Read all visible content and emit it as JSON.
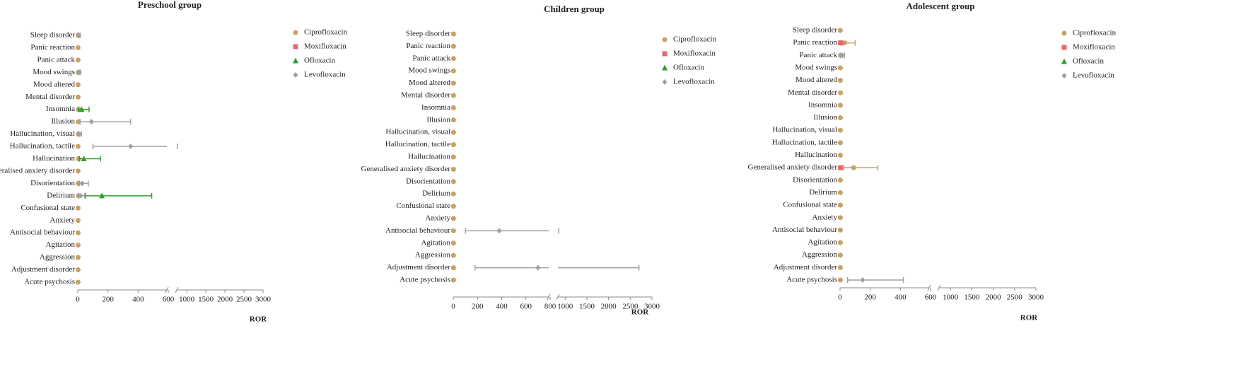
{
  "chart_data": [
    {
      "type": "forest",
      "title": "Preschool group",
      "xlabel": "ROR",
      "categories": [
        "Sleep disorder",
        "Panic reaction",
        "Panic attack",
        "Mood swings",
        "Mood altered",
        "Mental disorder",
        "Insomnia",
        "Illusion",
        "Hallucination, visual",
        "Hallucination, tactile",
        "Hallucination",
        "Generalised anxiety disorder",
        "Disorientation",
        "Delirium",
        "Confusional state",
        "Anxiety",
        "Antisocial behaviour",
        "Agitation",
        "Aggression",
        "Adjustment disorder",
        "Acute psychosis"
      ],
      "xlim": [
        0,
        3000
      ],
      "xbreak": [
        600,
        700
      ],
      "xticks": [
        0,
        200,
        400,
        600,
        1000,
        1500,
        2000,
        2500,
        3000
      ],
      "series": [
        {
          "name": "Ciprofloxacin",
          "color": "#c8a165",
          "marker": "circle",
          "values": [
            3,
            2,
            2,
            3,
            2,
            2,
            4,
            3,
            3,
            2,
            5,
            2,
            3,
            4,
            2,
            2,
            2,
            2,
            2,
            2,
            2
          ]
        },
        {
          "name": "Moxifloxacin",
          "color": "#e8676b",
          "marker": "square",
          "values": [
            null,
            null,
            null,
            null,
            null,
            null,
            null,
            null,
            null,
            null,
            null,
            null,
            null,
            null,
            null,
            null,
            null,
            null,
            null,
            null,
            null
          ]
        },
        {
          "name": "Ofloxacin",
          "color": "#2ca02c",
          "marker": "triangle",
          "values": [
            null,
            null,
            null,
            null,
            null,
            null,
            25,
            null,
            null,
            null,
            40,
            null,
            null,
            160,
            null,
            null,
            null,
            null,
            null,
            null,
            null
          ],
          "lower": [
            null,
            null,
            null,
            null,
            null,
            null,
            5,
            null,
            null,
            null,
            10,
            null,
            null,
            50,
            null,
            null,
            null,
            null,
            null,
            null,
            null
          ],
          "upper": [
            null,
            null,
            null,
            null,
            null,
            null,
            75,
            null,
            null,
            null,
            150,
            null,
            null,
            490,
            null,
            null,
            null,
            null,
            null,
            null,
            null
          ]
        },
        {
          "name": "Levofloxacin",
          "color": "#a0a0a0",
          "marker": "diamond",
          "values": [
            8,
            null,
            null,
            10,
            null,
            null,
            null,
            90,
            10,
            350,
            null,
            null,
            30,
            20,
            null,
            null,
            null,
            null,
            null,
            null,
            null
          ],
          "lower": [
            2,
            null,
            null,
            3,
            null,
            null,
            null,
            15,
            2,
            100,
            null,
            null,
            10,
            5,
            null,
            null,
            null,
            null,
            null,
            null,
            null
          ],
          "upper": [
            15,
            null,
            null,
            20,
            null,
            null,
            null,
            350,
            25,
            750,
            null,
            null,
            70,
            45,
            null,
            null,
            null,
            null,
            null,
            null,
            null
          ]
        }
      ]
    },
    {
      "type": "forest",
      "title": "Children group",
      "xlabel": "ROR",
      "categories": [
        "Sleep disorder",
        "Panic reaction",
        "Panic attack",
        "Mood swings",
        "Mood altered",
        "Mental disorder",
        "Insomnia",
        "Illusion",
        "Hallucination, visual",
        "Hallucination, tactile",
        "Hallucination",
        "Generalised anxiety disorder",
        "Disorientation",
        "Delirium",
        "Confusional state",
        "Anxiety",
        "Antisocial behaviour",
        "Agitation",
        "Aggression",
        "Adjustment disorder",
        "Acute psychosis"
      ],
      "xlim": [
        0,
        3000
      ],
      "xbreak": [
        800,
        800
      ],
      "xticks": [
        0,
        200,
        400,
        600,
        800,
        1000,
        1500,
        2000,
        2500,
        3000
      ],
      "series": [
        {
          "name": "Ciprofloxacin",
          "color": "#c8a165",
          "marker": "circle",
          "values": [
            2,
            2,
            2,
            2,
            2,
            2,
            2,
            2,
            2,
            2,
            2,
            2,
            2,
            2,
            2,
            2,
            2,
            2,
            2,
            2,
            2
          ]
        },
        {
          "name": "Moxifloxacin",
          "color": "#e8676b",
          "marker": "square",
          "values": [
            null,
            null,
            null,
            null,
            null,
            null,
            null,
            null,
            null,
            null,
            null,
            null,
            null,
            null,
            null,
            null,
            null,
            null,
            null,
            null,
            null
          ]
        },
        {
          "name": "Ofloxacin",
          "color": "#2ca02c",
          "marker": "triangle",
          "values": [
            null,
            null,
            null,
            null,
            null,
            null,
            null,
            null,
            null,
            null,
            null,
            null,
            null,
            null,
            null,
            null,
            null,
            null,
            null,
            null,
            null
          ]
        },
        {
          "name": "Levofloxacin",
          "color": "#a0a0a0",
          "marker": "diamond",
          "values": [
            null,
            null,
            null,
            null,
            null,
            null,
            null,
            null,
            null,
            null,
            null,
            null,
            null,
            null,
            null,
            null,
            380,
            null,
            null,
            700,
            null
          ],
          "lower": [
            null,
            null,
            null,
            null,
            null,
            null,
            null,
            null,
            null,
            null,
            null,
            null,
            null,
            null,
            null,
            null,
            100,
            null,
            null,
            180,
            null
          ],
          "upper": [
            null,
            null,
            null,
            null,
            null,
            null,
            null,
            null,
            null,
            null,
            null,
            null,
            null,
            null,
            null,
            null,
            850,
            null,
            null,
            2700,
            null
          ]
        }
      ]
    },
    {
      "type": "forest",
      "title": "Adolescent group",
      "xlabel": "ROR",
      "categories": [
        "Sleep disorder",
        "Panic reaction",
        "Panic attack",
        "Mood swings",
        "Mood altered",
        "Mental disorder",
        "Insomnia",
        "Illusion",
        "Hallucination, visual",
        "Hallucination, tactile",
        "Hallucination",
        "Generalised anxiety disorder",
        "Disorientation",
        "Delirium",
        "Confusional state",
        "Anxiety",
        "Antisocial behaviour",
        "Agitation",
        "Aggression",
        "Adjustment disorder",
        "Acute psychosis"
      ],
      "xlim": [
        0,
        3000
      ],
      "xbreak": [
        600,
        700
      ],
      "xticks": [
        0,
        200,
        400,
        600,
        1000,
        1500,
        2000,
        2500,
        3000
      ],
      "series": [
        {
          "name": "Ciprofloxacin",
          "color": "#c8a165",
          "marker": "circle",
          "values": [
            2,
            30,
            3,
            2,
            2,
            3,
            2,
            2,
            2,
            2,
            2,
            90,
            2,
            2,
            2,
            2,
            2,
            2,
            2,
            2,
            2
          ],
          "lower": [
            null,
            5,
            null,
            null,
            null,
            null,
            null,
            null,
            null,
            null,
            null,
            25,
            null,
            null,
            null,
            null,
            null,
            null,
            null,
            null,
            null
          ],
          "upper": [
            null,
            100,
            null,
            null,
            null,
            null,
            null,
            null,
            null,
            null,
            null,
            250,
            null,
            null,
            null,
            null,
            null,
            null,
            null,
            null,
            null
          ]
        },
        {
          "name": "Moxifloxacin",
          "color": "#e8676b",
          "marker": "square",
          "values": [
            null,
            3,
            null,
            null,
            null,
            null,
            null,
            null,
            null,
            null,
            null,
            3,
            null,
            null,
            null,
            null,
            null,
            null,
            null,
            null,
            null
          ]
        },
        {
          "name": "Ofloxacin",
          "color": "#2ca02c",
          "marker": "triangle",
          "values": [
            null,
            null,
            null,
            null,
            null,
            null,
            null,
            null,
            null,
            null,
            null,
            null,
            null,
            null,
            null,
            null,
            null,
            null,
            null,
            null,
            null
          ]
        },
        {
          "name": "Levofloxacin",
          "color": "#a0a0a0",
          "marker": "diamond",
          "values": [
            null,
            null,
            15,
            null,
            null,
            null,
            null,
            null,
            null,
            null,
            null,
            null,
            null,
            null,
            null,
            null,
            null,
            null,
            null,
            null,
            150
          ],
          "lower": [
            null,
            null,
            3,
            null,
            null,
            null,
            null,
            null,
            null,
            null,
            null,
            null,
            null,
            null,
            null,
            null,
            null,
            null,
            null,
            null,
            50
          ],
          "upper": [
            null,
            null,
            30,
            null,
            null,
            null,
            null,
            null,
            null,
            null,
            null,
            null,
            null,
            null,
            null,
            null,
            null,
            null,
            null,
            null,
            420
          ]
        }
      ]
    }
  ]
}
